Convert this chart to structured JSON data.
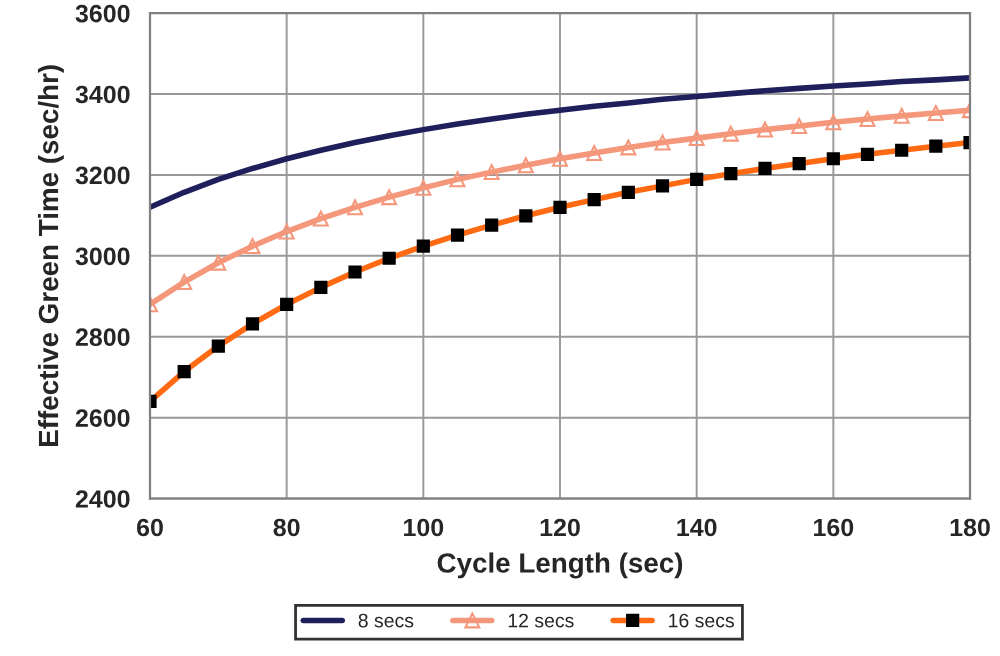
{
  "chart_data": {
    "type": "line",
    "xlabel": "Cycle Length (sec)",
    "ylabel": "Effective Green Time (sec/hr)",
    "x": [
      60,
      65,
      70,
      75,
      80,
      85,
      90,
      95,
      100,
      105,
      110,
      115,
      120,
      125,
      130,
      135,
      140,
      145,
      150,
      155,
      160,
      165,
      170,
      175,
      180
    ],
    "series": [
      {
        "name": "8 secs",
        "color": "#1f1f5c",
        "marker": "none",
        "values": [
          3120,
          3157,
          3189,
          3216,
          3240,
          3261,
          3280,
          3297,
          3312,
          3326,
          3338,
          3350,
          3360,
          3370,
          3378,
          3387,
          3394,
          3401,
          3408,
          3414,
          3420,
          3425,
          3431,
          3435,
          3440
        ]
      },
      {
        "name": "12 secs",
        "color": "#f4977a",
        "marker": "triangle",
        "values": [
          2880,
          2935,
          2983,
          3024,
          3060,
          3092,
          3120,
          3145,
          3168,
          3189,
          3207,
          3224,
          3240,
          3254,
          3268,
          3280,
          3291,
          3302,
          3312,
          3321,
          3330,
          3338,
          3346,
          3353,
          3360
        ]
      },
      {
        "name": "16 secs",
        "color": "#ff6a13",
        "marker": "square",
        "values": [
          2640,
          2714,
          2777,
          2832,
          2880,
          2922,
          2960,
          2994,
          3024,
          3051,
          3076,
          3099,
          3120,
          3139,
          3157,
          3173,
          3189,
          3203,
          3216,
          3228,
          3240,
          3251,
          3261,
          3271,
          3280
        ]
      }
    ],
    "xlim": [
      60,
      180
    ],
    "xticks": [
      60,
      80,
      100,
      120,
      140,
      160,
      180
    ],
    "ylim": [
      2400,
      3600
    ],
    "yticks": [
      2400,
      2600,
      2800,
      3000,
      3200,
      3400,
      3600
    ],
    "grid": true,
    "legend": "bottom"
  }
}
